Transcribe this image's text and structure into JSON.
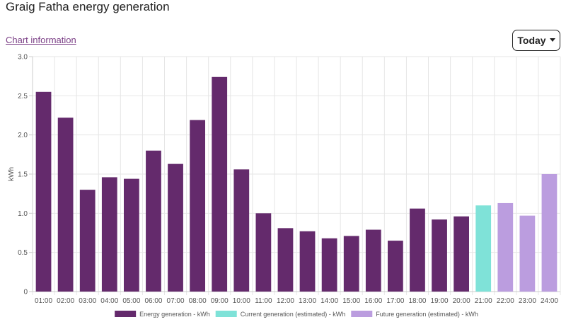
{
  "page": {
    "title": "Graig Fatha energy generation",
    "chart_info_label": "Chart information",
    "period_label": "Today"
  },
  "colors": {
    "energy": "#642a6c",
    "current": "#7fe2d8",
    "future": "#bb9ddf",
    "link": "#7b3f86"
  },
  "chart_data": {
    "type": "bar",
    "title": "",
    "xlabel": "",
    "ylabel": "kWh",
    "ylim": [
      0,
      3.0
    ],
    "y_ticks": [
      "0",
      "0.5",
      "1.0",
      "1.5",
      "2.0",
      "2.5",
      "3.0"
    ],
    "grid": true,
    "legend_position": "bottom",
    "categories": [
      "01:00",
      "02:00",
      "03:00",
      "04:00",
      "05:00",
      "06:00",
      "07:00",
      "08:00",
      "09:00",
      "10:00",
      "11:00",
      "12:00",
      "13:00",
      "14:00",
      "15:00",
      "16:00",
      "17:00",
      "18:00",
      "19:00",
      "20:00",
      "21:00",
      "22:00",
      "23:00",
      "24:00"
    ],
    "values": [
      2.55,
      2.22,
      1.3,
      1.46,
      1.44,
      1.8,
      1.63,
      2.19,
      2.74,
      1.56,
      1.0,
      0.81,
      0.77,
      0.68,
      0.71,
      0.79,
      0.65,
      1.06,
      0.92,
      0.96,
      1.1,
      1.13,
      0.97,
      1.5
    ],
    "bar_series": [
      "energy",
      "energy",
      "energy",
      "energy",
      "energy",
      "energy",
      "energy",
      "energy",
      "energy",
      "energy",
      "energy",
      "energy",
      "energy",
      "energy",
      "energy",
      "energy",
      "energy",
      "energy",
      "energy",
      "energy",
      "current",
      "future",
      "future",
      "future"
    ],
    "series": [
      {
        "key": "energy",
        "name": "Energy generation - kWh"
      },
      {
        "key": "current",
        "name": "Current generation (estimated) - kWh"
      },
      {
        "key": "future",
        "name": "Future generation (estimated) - kWh"
      }
    ]
  }
}
